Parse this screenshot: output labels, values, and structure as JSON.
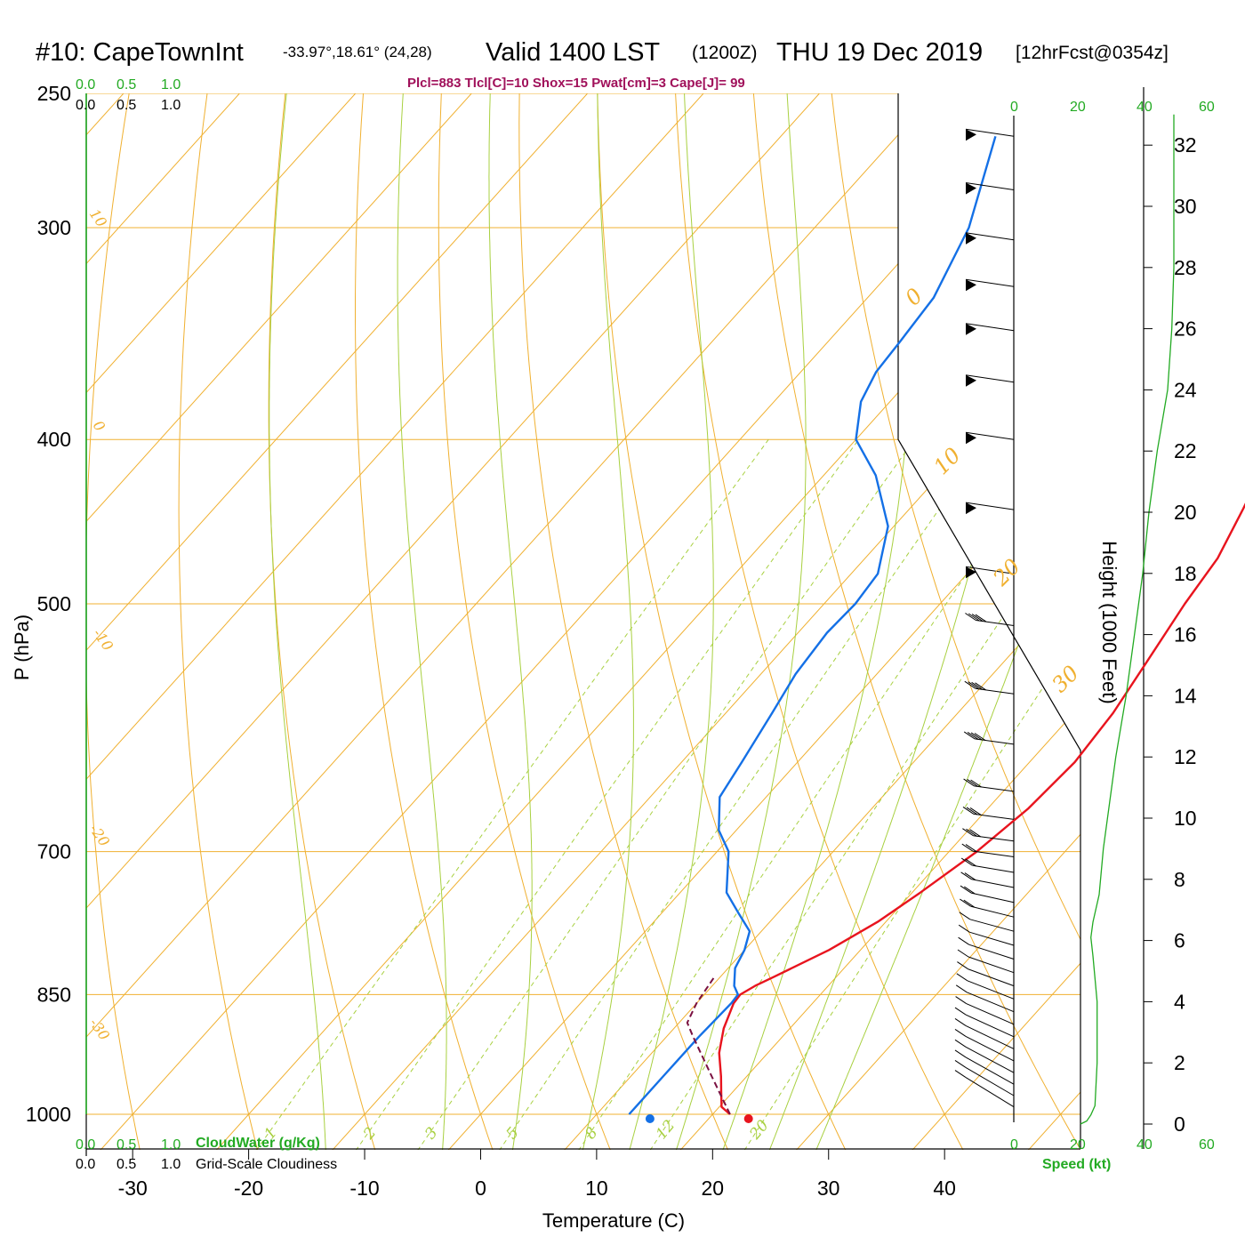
{
  "header": {
    "station": "#10: CapeTownInt",
    "coords": "-33.97°,18.61° (24,28)",
    "valid": "Valid 1400 LST",
    "zulu": "(1200Z)",
    "date": "THU 19 Dec 2019",
    "forecast": "[12hrFcst@0354z]",
    "indices": "Plcl=883 Tlcl[C]=10 Shox=15 Pwat[cm]=3 Cape[J]= 99"
  },
  "axes": {
    "xlabel": "Temperature (C)",
    "ylabel": "P (hPa)",
    "ylabel_right": "Height (1000 Feet)",
    "speed_label": "Speed (kt)",
    "cloudwater_label": "CloudWater (g/Kg)",
    "cloudiness_label": "Grid-Scale Cloudiness",
    "scale_010": [
      "0.0",
      "0.5",
      "1.0"
    ],
    "speed_ticks": [
      "0",
      "20",
      "40",
      "60"
    ]
  },
  "colors": {
    "temperature": "#e8141e",
    "dewpoint": "#1470e6",
    "parcel": "#7a1040",
    "isotherm": "#f0b030",
    "dry_adiabat": "#a8d040",
    "mixing_ratio": "#a8d040",
    "isobar": "#f0b030",
    "wind_speed": "#22aa22"
  },
  "chart_data": {
    "type": "line",
    "chart_kind": "skew-T log-P sounding",
    "xlim": [
      -34,
      36
    ],
    "ylim": [
      1000,
      250
    ],
    "y_scale": "log",
    "pressure_ticks": [
      250,
      300,
      400,
      500,
      700,
      850,
      1000
    ],
    "temperature_ticks": [
      -30,
      -20,
      -10,
      0,
      10,
      20,
      30,
      40
    ],
    "height_ticks_kft": [
      0,
      2,
      4,
      6,
      8,
      10,
      12,
      14,
      16,
      18,
      20,
      22,
      24,
      26,
      28,
      30,
      32
    ],
    "isotherm_labels": [
      "0",
      "10",
      "20",
      "30"
    ],
    "dry_adiabat_labels": [
      "10",
      "0",
      "-10",
      "-20",
      "-30"
    ],
    "mixing_ratio_labels": [
      "1",
      "2",
      "3",
      "5",
      "8",
      "12",
      "20"
    ],
    "mixing_ratio_values": [
      1,
      2,
      3,
      5,
      8,
      12,
      20
    ],
    "series": [
      {
        "id": "temperature",
        "points": [
          [
            1000,
            21.5
          ],
          [
            990,
            20.2
          ],
          [
            970,
            19.0
          ],
          [
            950,
            17.8
          ],
          [
            920,
            15.8
          ],
          [
            890,
            14.3
          ],
          [
            860,
            13.2
          ],
          [
            850,
            13.1
          ],
          [
            840,
            13.7
          ],
          [
            830,
            14.6
          ],
          [
            800,
            17.3
          ],
          [
            770,
            19.3
          ],
          [
            740,
            20.7
          ],
          [
            700,
            22.4
          ],
          [
            660,
            23.5
          ],
          [
            620,
            23.9
          ],
          [
            580,
            23.4
          ],
          [
            540,
            22.3
          ],
          [
            500,
            21.1
          ],
          [
            470,
            20.4
          ],
          [
            440,
            18.8
          ],
          [
            400,
            16.3
          ],
          [
            370,
            13.3
          ],
          [
            330,
            8.5
          ],
          [
            300,
            4.6
          ],
          [
            265,
            -0.4
          ]
        ]
      },
      {
        "id": "dewpoint",
        "points": [
          [
            1000,
            12.8
          ],
          [
            990,
            12.8
          ],
          [
            950,
            12.8
          ],
          [
            900,
            12.8
          ],
          [
            860,
            13.0
          ],
          [
            850,
            12.9
          ],
          [
            840,
            11.9
          ],
          [
            820,
            10.6
          ],
          [
            800,
            10.0
          ],
          [
            780,
            9.0
          ],
          [
            760,
            6.5
          ],
          [
            740,
            4.0
          ],
          [
            700,
            1.0
          ],
          [
            680,
            -1.5
          ],
          [
            650,
            -4.0
          ],
          [
            620,
            -4.8
          ],
          [
            580,
            -6.0
          ],
          [
            550,
            -7.0
          ],
          [
            520,
            -7.5
          ],
          [
            500,
            -7.3
          ],
          [
            480,
            -7.7
          ],
          [
            450,
            -10.5
          ],
          [
            420,
            -15.5
          ],
          [
            400,
            -20.0
          ],
          [
            380,
            -22.5
          ],
          [
            365,
            -23.5
          ],
          [
            350,
            -23.8
          ],
          [
            330,
            -24.3
          ],
          [
            300,
            -26.7
          ],
          [
            265,
            -31.5
          ]
        ]
      },
      {
        "id": "parcel",
        "points": [
          [
            1000,
            21.5
          ],
          [
            950,
            17.0
          ],
          [
            900,
            12.3
          ],
          [
            883,
            10.7
          ],
          [
            860,
            10.0
          ],
          [
            830,
            9.5
          ]
        ]
      }
    ],
    "surface_markers": [
      {
        "id": "surface-dewpoint",
        "p": 1000,
        "t": 14.6
      },
      {
        "id": "surface-temperature",
        "p": 1000,
        "t": 23.1
      }
    ],
    "wind_speed_profile_kt": [
      [
        0.0,
        0
      ],
      [
        0.1,
        3
      ],
      [
        0.3,
        5
      ],
      [
        0.6,
        7
      ],
      [
        2.0,
        8
      ],
      [
        4.0,
        8
      ],
      [
        5.5,
        6
      ],
      [
        6.1,
        5
      ],
      [
        6.6,
        6
      ],
      [
        7.5,
        9
      ],
      [
        9.0,
        11
      ],
      [
        10.5,
        14
      ],
      [
        12.0,
        17
      ],
      [
        14.0,
        22
      ],
      [
        16.0,
        26
      ],
      [
        18.0,
        30
      ],
      [
        20.0,
        33
      ],
      [
        22.0,
        37
      ],
      [
        24.0,
        42
      ],
      [
        26.0,
        44
      ],
      [
        28.0,
        45
      ],
      [
        30.0,
        45
      ],
      [
        32.0,
        45
      ],
      [
        33.0,
        45
      ]
    ],
    "wind_barbs": [
      {
        "p": 265,
        "flags": 1,
        "barbs": 0
      },
      {
        "p": 285,
        "flags": 1,
        "barbs": 0
      },
      {
        "p": 305,
        "flags": 1,
        "barbs": 0
      },
      {
        "p": 325,
        "flags": 1,
        "barbs": 0
      },
      {
        "p": 345,
        "flags": 1,
        "barbs": 0
      },
      {
        "p": 370,
        "flags": 1,
        "barbs": 0
      },
      {
        "p": 400,
        "flags": 1,
        "barbs": 0
      },
      {
        "p": 440,
        "flags": 1,
        "barbs": 0
      },
      {
        "p": 480,
        "flags": 1,
        "barbs": 0
      },
      {
        "p": 515,
        "flags": 0,
        "barbs": 4
      },
      {
        "p": 565,
        "flags": 0,
        "barbs": 4
      },
      {
        "p": 605,
        "flags": 0,
        "barbs": 4
      },
      {
        "p": 645,
        "flags": 0,
        "barbs": 3
      },
      {
        "p": 670,
        "flags": 0,
        "barbs": 3
      },
      {
        "p": 690,
        "flags": 0,
        "barbs": 3
      },
      {
        "p": 705,
        "flags": 0,
        "barbs": 2
      },
      {
        "p": 720,
        "flags": 0,
        "barbs": 2
      },
      {
        "p": 735,
        "flags": 0,
        "barbs": 2
      },
      {
        "p": 750,
        "flags": 0,
        "barbs": 2
      },
      {
        "p": 765,
        "flags": 0,
        "barbs": 2
      },
      {
        "p": 780,
        "flags": 0,
        "barbs": 1
      },
      {
        "p": 795,
        "flags": 0,
        "barbs": 1
      },
      {
        "p": 810,
        "flags": 0,
        "barbs": 1
      },
      {
        "p": 825,
        "flags": 0,
        "barbs": 1
      },
      {
        "p": 840,
        "flags": 0,
        "barbs": 1
      },
      {
        "p": 855,
        "flags": 0,
        "barbs": 1
      },
      {
        "p": 870,
        "flags": 0,
        "barbs": 1
      },
      {
        "p": 885,
        "flags": 0,
        "barbs": 1
      },
      {
        "p": 900,
        "flags": 0,
        "barbs": 1
      },
      {
        "p": 915,
        "flags": 0,
        "barbs": 1
      },
      {
        "p": 930,
        "flags": 0,
        "barbs": 1
      },
      {
        "p": 945,
        "flags": 0,
        "barbs": 1
      },
      {
        "p": 960,
        "flags": 0,
        "barbs": 1
      },
      {
        "p": 975,
        "flags": 0,
        "barbs": 1
      },
      {
        "p": 990,
        "flags": 0,
        "barbs": 1
      }
    ]
  }
}
